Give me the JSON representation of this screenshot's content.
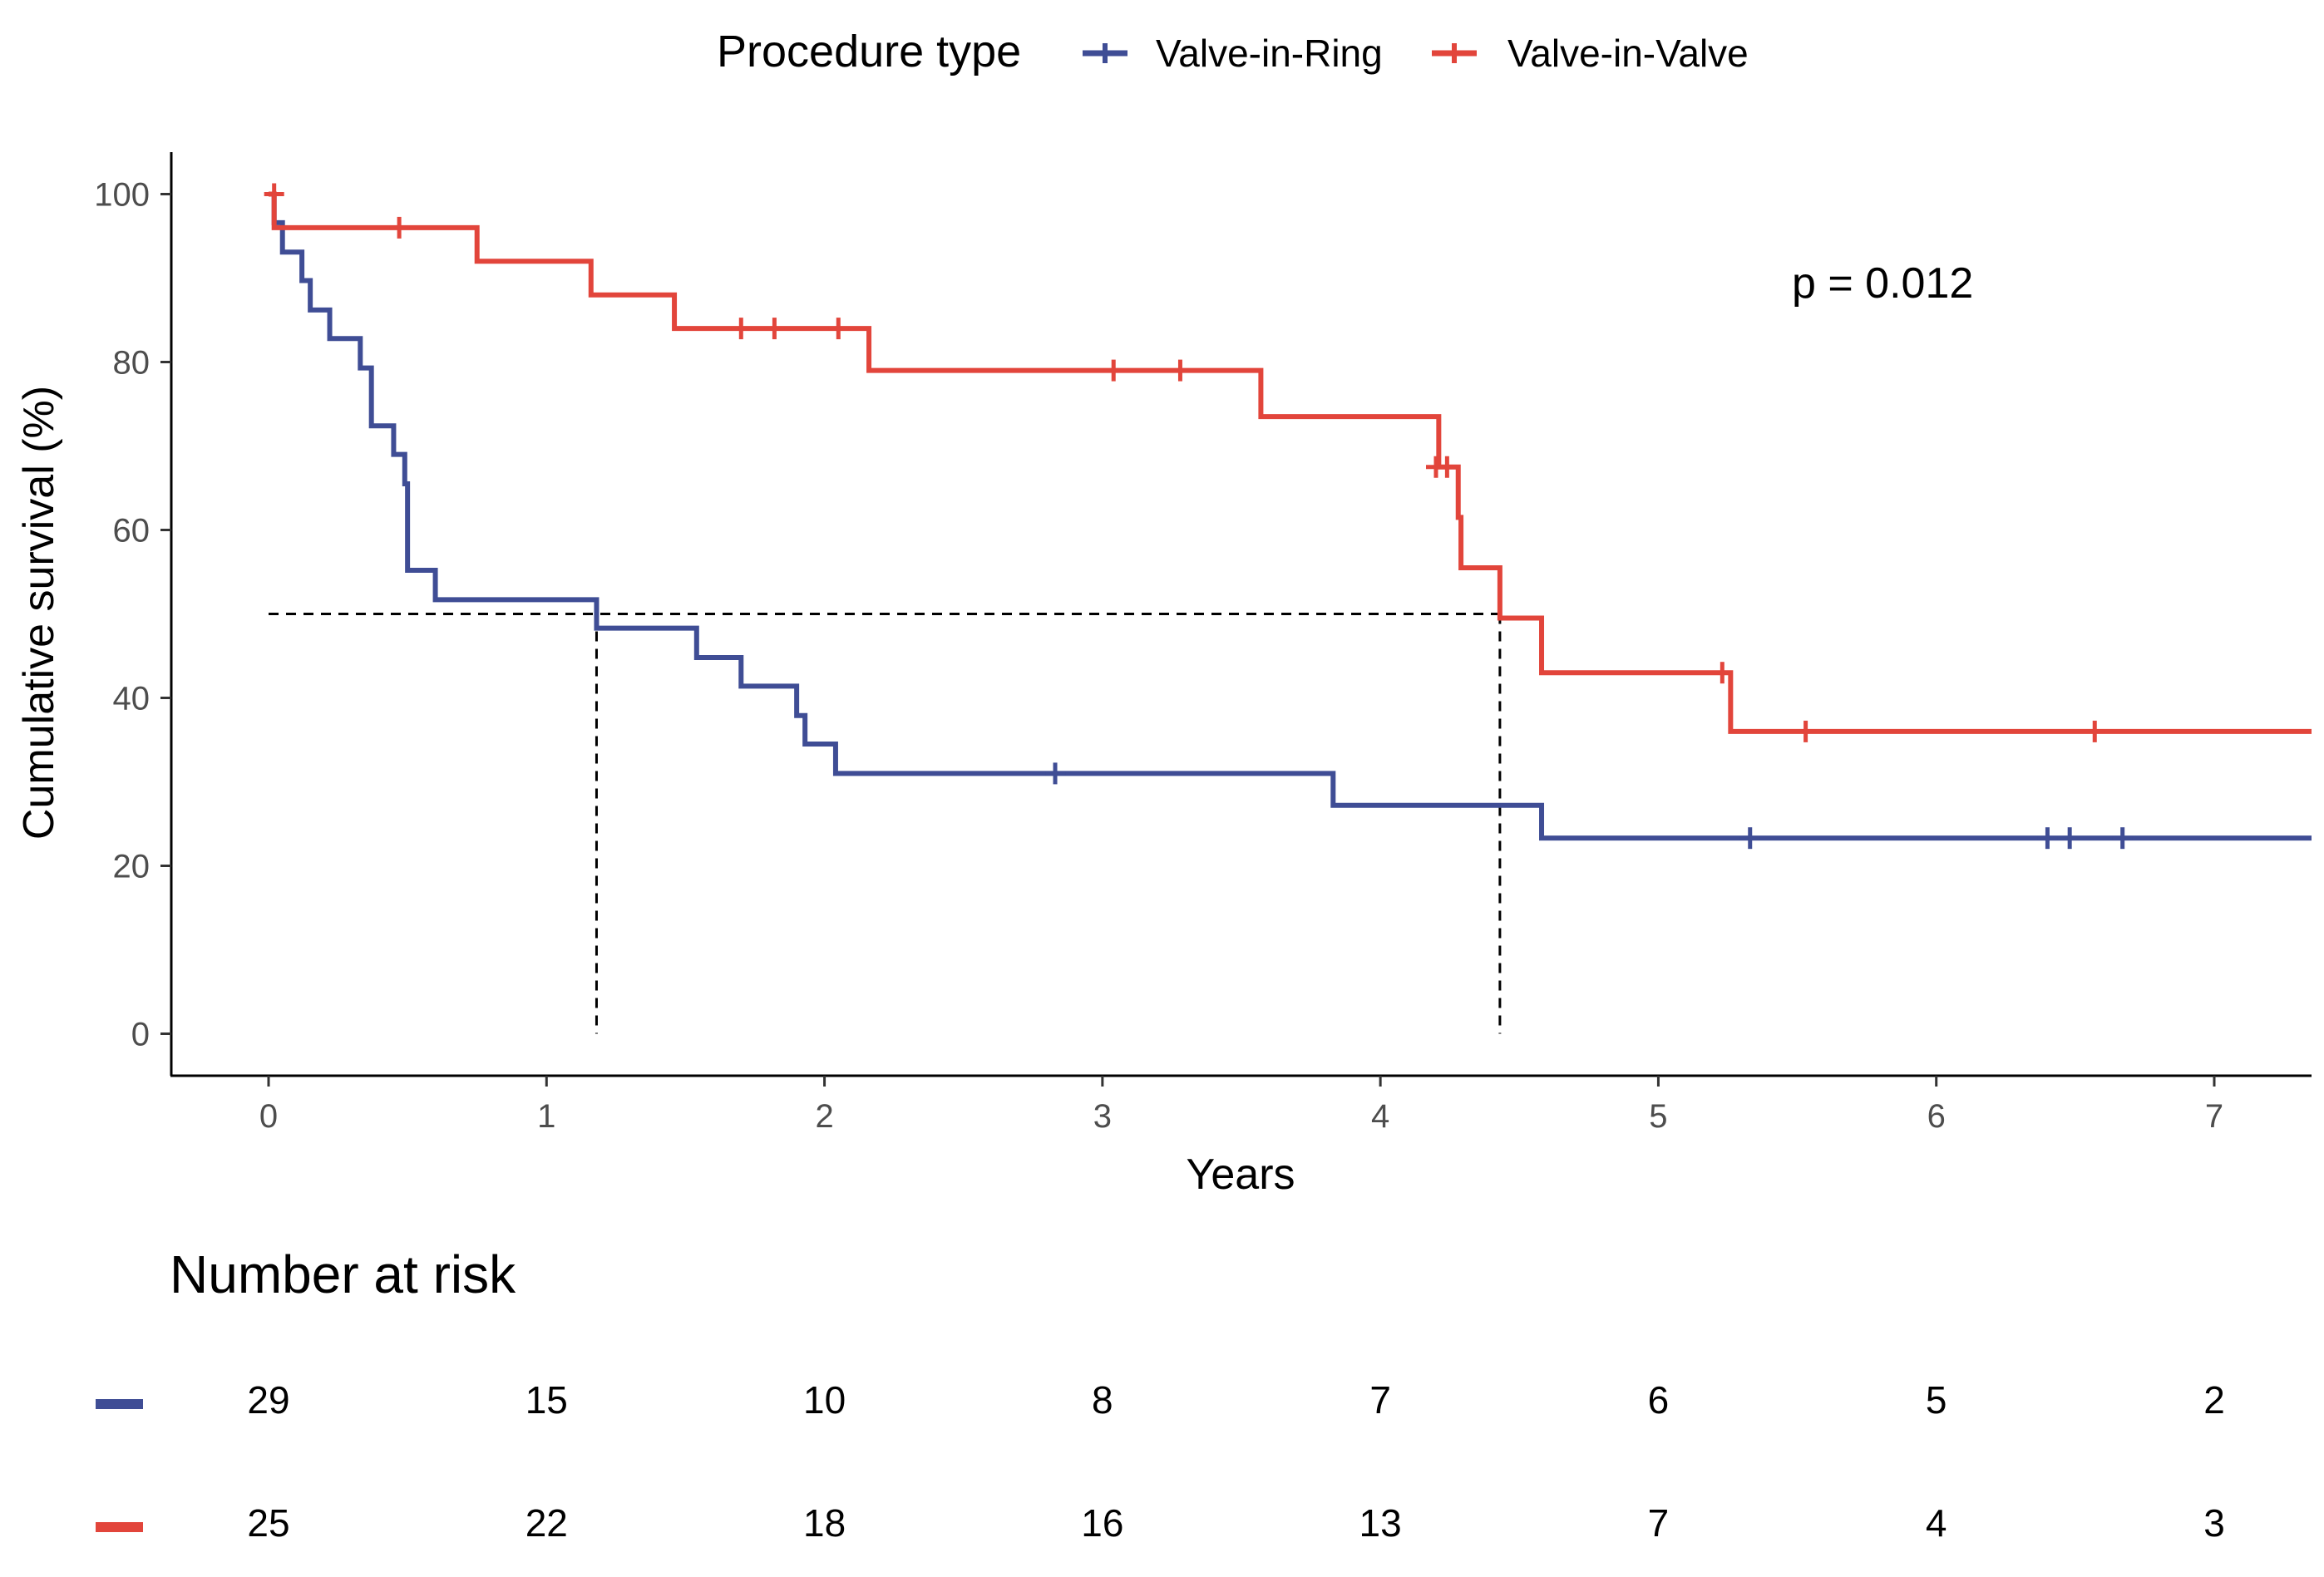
{
  "chart_data": {
    "type": "line",
    "subtype": "kaplan-meier",
    "legend": {
      "title": "Procedure type",
      "position": "top"
    },
    "xlabel": "Years",
    "ylabel": "Cumulative survival (%)",
    "xlim": [
      -0.35,
      7.35
    ],
    "ylim": [
      -5,
      105
    ],
    "xticks": [
      0,
      1,
      2,
      3,
      4,
      5,
      6,
      7
    ],
    "yticks": [
      0,
      20,
      40,
      60,
      80,
      100
    ],
    "annotation": "p = 0.012",
    "median_lines": [
      1.18,
      4.43
    ],
    "median_level": 50,
    "series": [
      {
        "name": "Valve-in-Ring",
        "color": "#3f4d95",
        "steps": [
          [
            0,
            100
          ],
          [
            0.02,
            96.6
          ],
          [
            0.05,
            93.1
          ],
          [
            0.12,
            89.7
          ],
          [
            0.15,
            86.2
          ],
          [
            0.22,
            82.8
          ],
          [
            0.33,
            79.3
          ],
          [
            0.37,
            72.4
          ],
          [
            0.45,
            69.0
          ],
          [
            0.49,
            65.5
          ],
          [
            0.5,
            55.2
          ],
          [
            0.6,
            51.7
          ],
          [
            1.18,
            48.3
          ],
          [
            1.54,
            44.8
          ],
          [
            1.7,
            41.4
          ],
          [
            1.9,
            37.9
          ],
          [
            1.93,
            34.5
          ],
          [
            2.04,
            31.0
          ],
          [
            3.83,
            27.2
          ],
          [
            4.58,
            23.3
          ],
          [
            7.35,
            23.3
          ]
        ],
        "censored": [
          [
            2.83,
            31.0
          ],
          [
            5.33,
            23.3
          ],
          [
            6.4,
            23.3
          ],
          [
            6.48,
            23.3
          ],
          [
            6.67,
            23.3
          ]
        ]
      },
      {
        "name": "Valve-in-Valve",
        "color": "#e2453b",
        "steps": [
          [
            0,
            100
          ],
          [
            0.02,
            96.0
          ],
          [
            0.75,
            92.0
          ],
          [
            1.16,
            88.0
          ],
          [
            1.46,
            84.0
          ],
          [
            2.16,
            79.0
          ],
          [
            3.57,
            73.5
          ],
          [
            4.21,
            67.5
          ],
          [
            4.28,
            61.5
          ],
          [
            4.29,
            55.5
          ],
          [
            4.43,
            49.5
          ],
          [
            4.58,
            43.0
          ],
          [
            5.26,
            36.0
          ],
          [
            7.35,
            36.0
          ]
        ],
        "censored": [
          [
            0.02,
            100
          ],
          [
            0.47,
            96.0
          ],
          [
            1.7,
            84.0
          ],
          [
            1.82,
            84.0
          ],
          [
            2.05,
            84.0
          ],
          [
            3.04,
            79.0
          ],
          [
            3.28,
            79.0
          ],
          [
            4.2,
            67.5
          ],
          [
            4.24,
            67.5
          ],
          [
            5.23,
            43.0
          ],
          [
            5.53,
            36.0
          ],
          [
            6.57,
            36.0
          ]
        ]
      }
    ],
    "risk_table": {
      "title": "Number at risk",
      "times": [
        0,
        1,
        2,
        3,
        4,
        5,
        6,
        7
      ],
      "rows": [
        {
          "series": "Valve-in-Ring",
          "color": "#3f4d95",
          "values": [
            29,
            15,
            10,
            8,
            7,
            6,
            5,
            2
          ]
        },
        {
          "series": "Valve-in-Valve",
          "color": "#e2453b",
          "values": [
            25,
            22,
            18,
            16,
            13,
            7,
            4,
            3
          ]
        }
      ]
    }
  }
}
